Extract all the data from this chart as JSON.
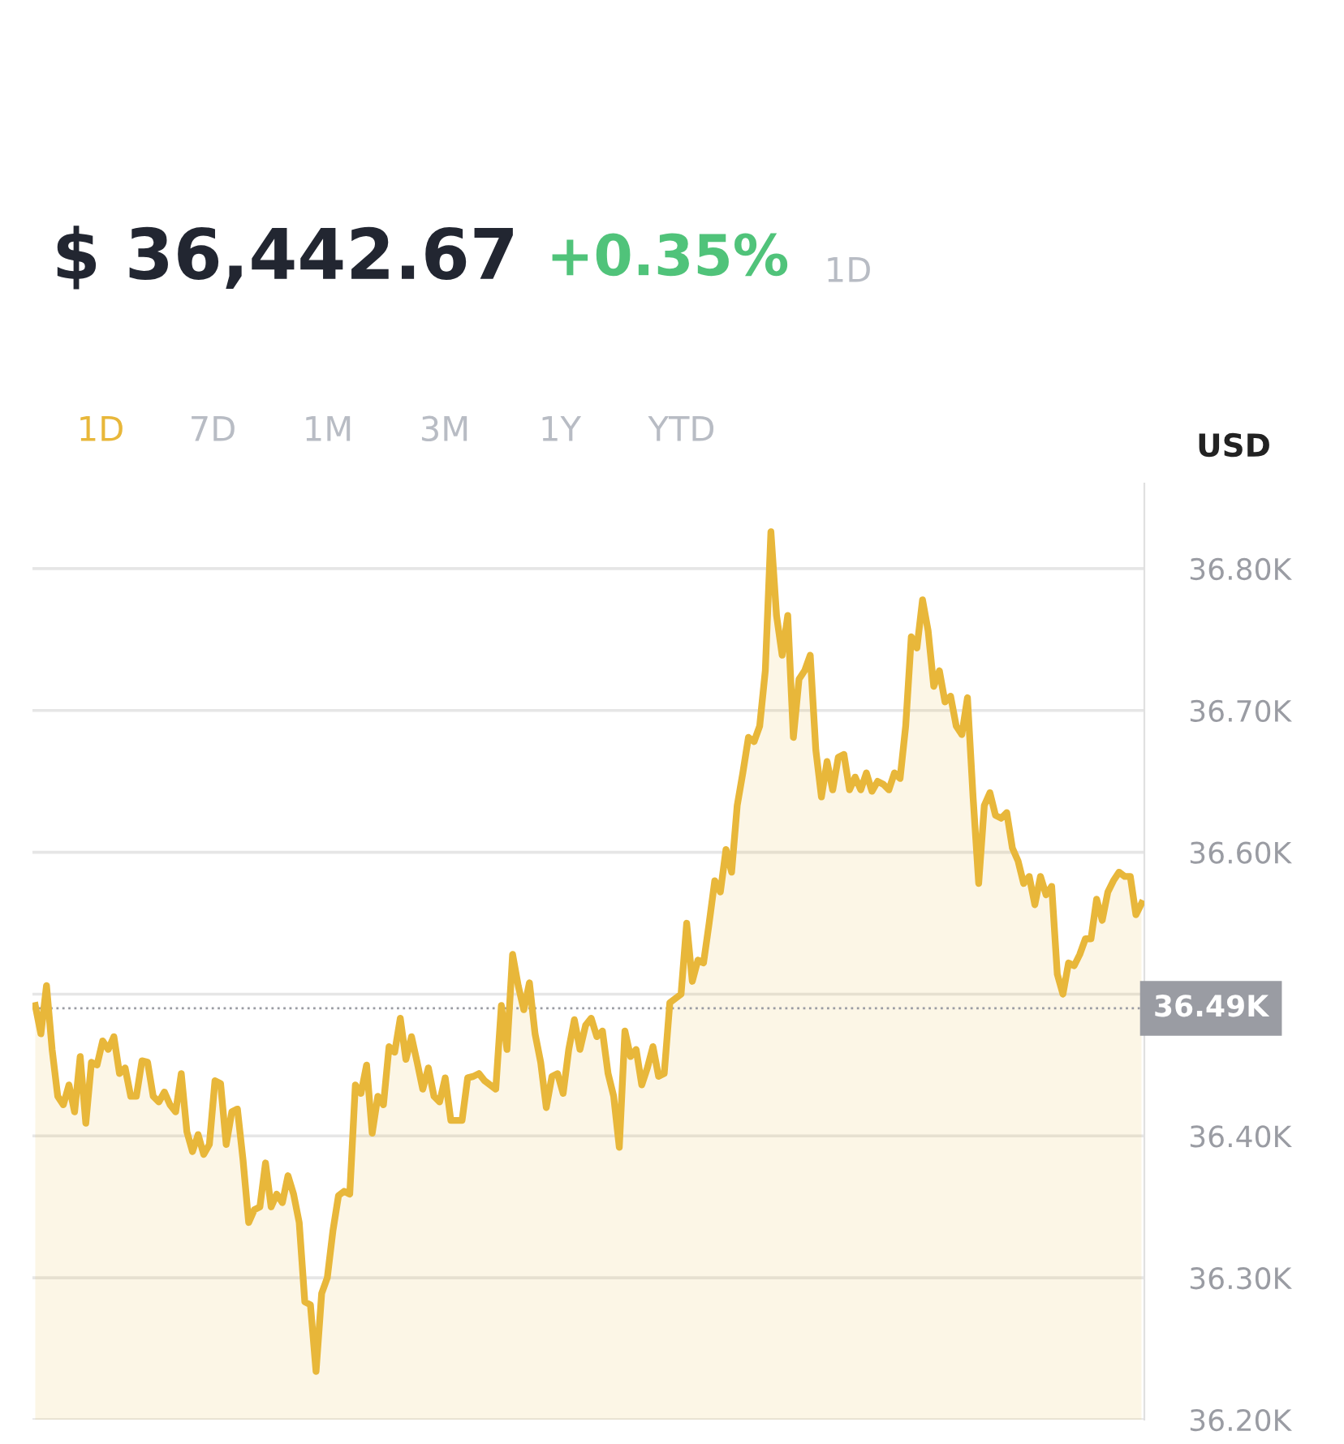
{
  "chart_data": {
    "type": "area",
    "title": "$ 36,442.67",
    "subtitle": "+0.35%",
    "annotations": [
      "1D",
      "1D",
      "7D",
      "1M",
      "3M",
      "1Y",
      "YTD"
    ],
    "ylabel": "USD",
    "categories": [
      null,
      null,
      null,
      null,
      null,
      null,
      null,
      null,
      null,
      null,
      null,
      null,
      null,
      null,
      null,
      null,
      null,
      null,
      null,
      null,
      null,
      null,
      null,
      null,
      null,
      null,
      null,
      null,
      null,
      null,
      null,
      null,
      null,
      null,
      null,
      null,
      null,
      null,
      null,
      null,
      null,
      null,
      null,
      null,
      null,
      null,
      null,
      null,
      null,
      null,
      null,
      null,
      null,
      null,
      null,
      null,
      null,
      null,
      null,
      null,
      null,
      null,
      null,
      null,
      null,
      null,
      null,
      null,
      null,
      null,
      null,
      null,
      null,
      null,
      null,
      null,
      null,
      null,
      null,
      null,
      null,
      null,
      null,
      null,
      null,
      null,
      null,
      null,
      null,
      null,
      null,
      null,
      null,
      null,
      null,
      null,
      null,
      null,
      null,
      null,
      null,
      null,
      null,
      null,
      null,
      null,
      null,
      null,
      null,
      null,
      null,
      null,
      null,
      null,
      null,
      null,
      null,
      null,
      null,
      null,
      null,
      null,
      null,
      null,
      null,
      null,
      null,
      null,
      null,
      null,
      null,
      null,
      null,
      null,
      null,
      null,
      null,
      null,
      null,
      null,
      null,
      null,
      null,
      null,
      null,
      null,
      null,
      null,
      null,
      null,
      null,
      null,
      null,
      null,
      null,
      null,
      null,
      null,
      null,
      null,
      null,
      null,
      null,
      null,
      null,
      null,
      null,
      null,
      null,
      null,
      null,
      null,
      null,
      null,
      null,
      null,
      null,
      null,
      null,
      null,
      null,
      null,
      null,
      null,
      null,
      null,
      null,
      null,
      null,
      null,
      null,
      null,
      null,
      null,
      null,
      null,
      null,
      null
    ],
    "series": [
      {
        "color": "#e8b73a",
        "values": [
          36492,
          36472,
          36506,
          36461,
          36428,
          36422,
          36436,
          36417,
          36456,
          36409,
          36452,
          36450,
          36467,
          36461,
          36470,
          36444,
          36448,
          36428,
          36428,
          36453,
          36452,
          36428,
          36424,
          36431,
          36422,
          36417,
          36444,
          36403,
          36389,
          36401,
          36387,
          36394,
          36439,
          36437,
          36394,
          36417,
          36419,
          36383,
          36339,
          36348,
          36350,
          36381,
          36350,
          36359,
          36353,
          36372,
          36359,
          36339,
          36283,
          36281,
          36234,
          36289,
          36300,
          36333,
          36358,
          36361,
          36359,
          36436,
          36430,
          36450,
          36402,
          36428,
          36422,
          36463,
          36459,
          36483,
          36454,
          36470,
          36452,
          36433,
          36448,
          36428,
          36424,
          36441,
          36411,
          36411,
          36411,
          36441,
          36442,
          36444,
          36439,
          36436,
          36433,
          36492,
          36461,
          36528,
          36506,
          36489,
          36508,
          36472,
          36452,
          36420,
          36442,
          36444,
          36430,
          36461,
          36482,
          36461,
          36478,
          36483,
          36470,
          36474,
          36444,
          36428,
          36392,
          36474,
          36456,
          36461,
          36436,
          36448,
          36463,
          36442,
          36444,
          36494,
          36497,
          36500,
          36550,
          36509,
          36524,
          36522,
          36550,
          36580,
          36572,
          36602,
          36586,
          36633,
          36656,
          36681,
          36678,
          36689,
          36728,
          36826,
          36767,
          36739,
          36767,
          36681,
          36722,
          36728,
          36739,
          36672,
          36639,
          36664,
          36644,
          36667,
          36669,
          36644,
          36653,
          36644,
          36656,
          36643,
          36650,
          36648,
          36644,
          36656,
          36652,
          36689,
          36752,
          36744,
          36778,
          36756,
          36717,
          36728,
          36706,
          36710,
          36689,
          36683,
          36709,
          36639,
          36578,
          36633,
          36642,
          36626,
          36624,
          36628,
          36603,
          36594,
          36578,
          36583,
          36563,
          36583,
          36570,
          36576,
          36514,
          36500,
          36522,
          36520,
          36528,
          36539,
          36539,
          36567,
          36552,
          36572,
          36580,
          36586,
          36583,
          36583,
          36556,
          36564
        ]
      }
    ],
    "ylim": [
      36200,
      36860
    ],
    "yticks": [
      {
        "value": 36200,
        "label": "36.20K"
      },
      {
        "value": 36300,
        "label": "36.30K"
      },
      {
        "value": 36400,
        "label": "36.40K"
      },
      {
        "value": 36500,
        "label": null
      },
      {
        "value": 36600,
        "label": "36.60K"
      },
      {
        "value": 36700,
        "label": "36.70K"
      },
      {
        "value": 36800,
        "label": "36.80K"
      }
    ],
    "ref_lines": [
      {
        "axis": "y",
        "value": 36490,
        "label": "36.49K",
        "color": "#9a9ca3",
        "line_style": "dotted"
      }
    ],
    "grid": "y",
    "tick_labels": "y",
    "marker": "none",
    "line_style": "solid"
  }
}
